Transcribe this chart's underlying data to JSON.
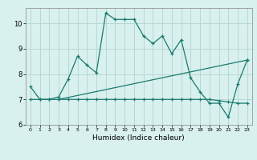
{
  "title": "",
  "xlabel": "Humidex (Indice chaleur)",
  "ylabel": "",
  "bg_color": "#d8f0ee",
  "grid_color": "#b8d8d4",
  "line_color": "#1a7a6e",
  "xlim": [
    -0.5,
    23.5
  ],
  "ylim": [
    6.0,
    10.6
  ],
  "xticks": [
    0,
    1,
    2,
    3,
    4,
    5,
    6,
    7,
    8,
    9,
    10,
    11,
    12,
    13,
    14,
    15,
    16,
    17,
    18,
    19,
    20,
    21,
    22,
    23
  ],
  "yticks": [
    6,
    7,
    8,
    9,
    10
  ],
  "line1_x": [
    0,
    1,
    2,
    3,
    4,
    5,
    6,
    7,
    8,
    9,
    10,
    11,
    12,
    13,
    14,
    15,
    16,
    17,
    18,
    19,
    20,
    21,
    22,
    23
  ],
  "line1_y": [
    7.5,
    7.0,
    7.0,
    7.1,
    7.8,
    8.7,
    8.35,
    8.05,
    10.4,
    10.15,
    10.15,
    10.15,
    9.5,
    9.2,
    9.5,
    8.8,
    9.35,
    7.85,
    7.3,
    6.85,
    6.85,
    6.3,
    7.6,
    8.55
  ],
  "line2_x": [
    0,
    1,
    2,
    3,
    4,
    5,
    6,
    7,
    8,
    9,
    10,
    11,
    12,
    13,
    14,
    15,
    16,
    17,
    18,
    19,
    20,
    21,
    22,
    23
  ],
  "line2_y": [
    7.0,
    7.0,
    7.0,
    7.0,
    7.0,
    7.0,
    7.0,
    7.0,
    7.0,
    7.0,
    7.0,
    7.0,
    7.0,
    7.0,
    7.0,
    7.0,
    7.0,
    7.0,
    7.0,
    7.0,
    6.95,
    6.9,
    6.85,
    6.85
  ],
  "line3_x": [
    3,
    23
  ],
  "line3_y": [
    7.0,
    8.55
  ]
}
